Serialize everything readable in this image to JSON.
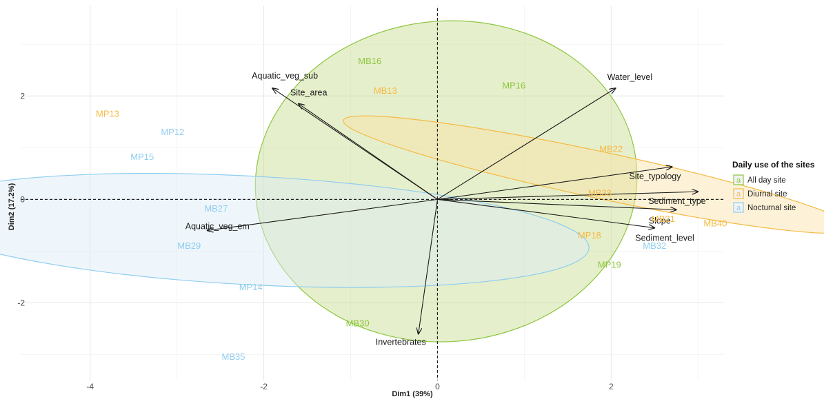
{
  "chart_data": {
    "type": "scatter",
    "xlabel": "Dim1 (39%)",
    "ylabel": "Dim2 (17.2%)",
    "xlim": [
      -4.8,
      3.3
    ],
    "ylim": [
      -3.5,
      3.75
    ],
    "x_ticks": [
      -4,
      -2,
      0,
      2
    ],
    "y_ticks": [
      -2,
      0,
      2
    ],
    "x_tick_labels": [
      "-4",
      "-2",
      "0",
      "2"
    ],
    "y_tick_labels": [
      "-2",
      "0",
      "2"
    ],
    "grid": true,
    "reference_lines": {
      "x": 0,
      "y": 0,
      "style": "dashed"
    },
    "legend": {
      "title": "Daily use of the sites",
      "placement": "right",
      "key_glyph": "a",
      "entries": [
        {
          "name": "All day site",
          "color": "#8cc63f"
        },
        {
          "name": "Diurnal site",
          "color": "#f5b942"
        },
        {
          "name": "Nocturnal site",
          "color": "#8fcdf0"
        }
      ]
    },
    "groups": [
      {
        "name": "All day site",
        "color": "#8cc63f",
        "fill": "#c8dc8c",
        "ellipse": {
          "cx": 0.1,
          "cy": 0.35,
          "rx": 2.2,
          "ry": 3.1,
          "angle": 5
        }
      },
      {
        "name": "Diurnal site",
        "color": "#f5b942",
        "fill": "#fbe3a6",
        "ellipse": {
          "cx": 1.85,
          "cy": 0.48,
          "rx": 3.0,
          "ry": 0.45,
          "angle": -12
        }
      },
      {
        "name": "Nocturnal site",
        "color": "#8fcdf0",
        "fill": "#dcecf6",
        "ellipse": {
          "cx": -2.15,
          "cy": -0.6,
          "rx": 3.9,
          "ry": 1.05,
          "angle": -3
        }
      }
    ],
    "points": [
      {
        "label": "MB16",
        "x": -0.78,
        "y": 2.67,
        "group": "All day site"
      },
      {
        "label": "MP16",
        "x": 0.88,
        "y": 2.2,
        "group": "All day site"
      },
      {
        "label": "MP19",
        "x": 1.98,
        "y": -1.27,
        "group": "All day site"
      },
      {
        "label": "MB30",
        "x": -0.92,
        "y": -2.4,
        "group": "All day site"
      },
      {
        "label": "MB13",
        "x": -0.6,
        "y": 2.1,
        "group": "Diurnal site"
      },
      {
        "label": "MP13",
        "x": -3.8,
        "y": 1.65,
        "group": "Diurnal site"
      },
      {
        "label": "MB22",
        "x": 2.0,
        "y": 0.97,
        "group": "Diurnal site"
      },
      {
        "label": "MB21",
        "x": 2.6,
        "y": -0.38,
        "group": "Diurnal site"
      },
      {
        "label": "MB40",
        "x": 3.2,
        "y": -0.47,
        "group": "Diurnal site"
      },
      {
        "label": "MP18",
        "x": 1.75,
        "y": -0.7,
        "group": "Diurnal site"
      },
      {
        "label": "MB33",
        "x": 1.87,
        "y": 0.12,
        "group": "Diurnal site"
      },
      {
        "label": "MP12",
        "x": -3.05,
        "y": 1.3,
        "group": "Nocturnal site"
      },
      {
        "label": "MP15",
        "x": -3.4,
        "y": 0.82,
        "group": "Nocturnal site"
      },
      {
        "label": "MB27",
        "x": -2.55,
        "y": -0.18,
        "group": "Nocturnal site"
      },
      {
        "label": "MB29",
        "x": -2.86,
        "y": -0.9,
        "group": "Nocturnal site"
      },
      {
        "label": "MP14",
        "x": -2.15,
        "y": -1.7,
        "group": "Nocturnal site"
      },
      {
        "label": "MB32",
        "x": 2.5,
        "y": -0.9,
        "group": "Nocturnal site"
      },
      {
        "label": "MB35",
        "x": -2.35,
        "y": -3.05,
        "group": "Nocturnal site"
      }
    ],
    "variables": [
      {
        "name": "Aquatic_veg_sub",
        "x": -1.9,
        "y": 2.15
      },
      {
        "name": "Site_area",
        "x": -1.6,
        "y": 1.85
      },
      {
        "name": "Water_level",
        "x": 2.05,
        "y": 2.15
      },
      {
        "name": "Site_typology",
        "x": 2.7,
        "y": 0.63
      },
      {
        "name": "Sediment_type",
        "x": 3.0,
        "y": 0.15
      },
      {
        "name": "Slope",
        "x": 2.75,
        "y": -0.2
      },
      {
        "name": "Sediment_level",
        "x": 2.5,
        "y": -0.55
      },
      {
        "name": "Aquatic_veg_em",
        "x": -2.65,
        "y": -0.6
      },
      {
        "name": "Invertebrates",
        "x": -0.22,
        "y": -2.6
      }
    ]
  }
}
